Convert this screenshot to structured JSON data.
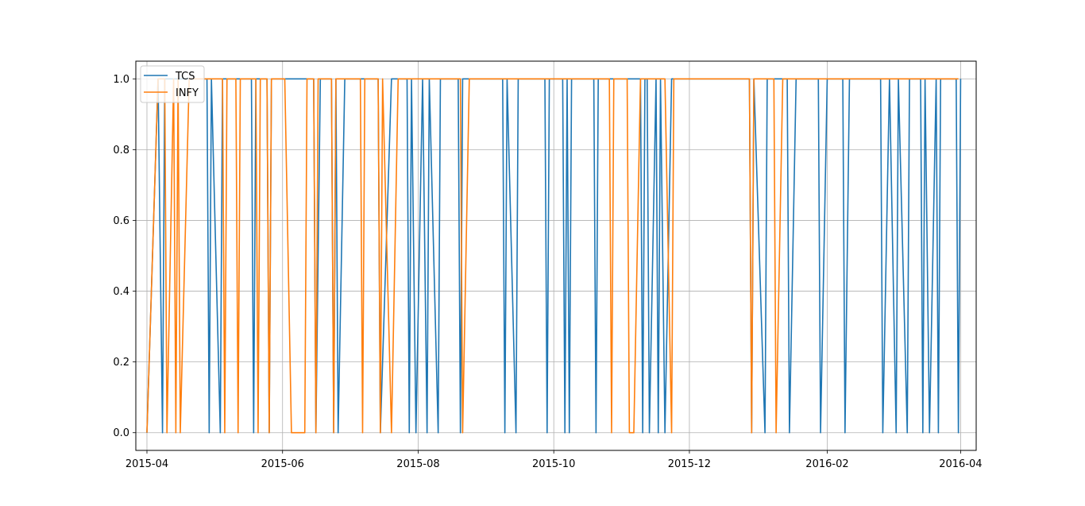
{
  "chart_data": {
    "type": "line",
    "title": "",
    "xlabel": "",
    "ylabel": "",
    "x_axis": "date",
    "xlim": [
      "2015-03-27",
      "2016-04-08"
    ],
    "ylim": [
      -0.05,
      1.05
    ],
    "grid": true,
    "legend_position": "top-left",
    "x_ticks": [
      "2015-04",
      "2015-06",
      "2015-08",
      "2015-10",
      "2015-12",
      "2016-02",
      "2016-04"
    ],
    "y_ticks": [
      "0.0",
      "0.2",
      "0.4",
      "0.6",
      "0.8",
      "1.0"
    ],
    "series": [
      {
        "name": "TCS",
        "color": "#1f77b4",
        "points": [
          [
            "2015-04-01",
            0
          ],
          [
            "2015-04-06",
            1
          ],
          [
            "2015-04-08",
            0
          ],
          [
            "2015-04-09",
            1
          ],
          [
            "2015-04-28",
            1
          ],
          [
            "2015-04-29",
            0
          ],
          [
            "2015-04-30",
            1
          ],
          [
            "2015-05-04",
            0
          ],
          [
            "2015-05-05",
            1
          ],
          [
            "2015-05-18",
            1
          ],
          [
            "2015-05-19",
            0
          ],
          [
            "2015-05-20",
            1
          ],
          [
            "2015-05-25",
            1
          ],
          [
            "2015-05-26",
            0
          ],
          [
            "2015-05-27",
            1
          ],
          [
            "2015-06-15",
            1
          ],
          [
            "2015-06-16",
            0
          ],
          [
            "2015-06-18",
            1
          ],
          [
            "2015-06-23",
            1
          ],
          [
            "2015-06-24",
            0
          ],
          [
            "2015-06-25",
            1
          ],
          [
            "2015-06-26",
            0
          ],
          [
            "2015-06-29",
            1
          ],
          [
            "2015-07-14",
            1
          ],
          [
            "2015-07-15",
            0
          ],
          [
            "2015-07-20",
            1
          ],
          [
            "2015-07-27",
            1
          ],
          [
            "2015-07-28",
            0
          ],
          [
            "2015-07-29",
            1
          ],
          [
            "2015-07-31",
            0
          ],
          [
            "2015-08-03",
            1
          ],
          [
            "2015-08-05",
            0
          ],
          [
            "2015-08-06",
            1
          ],
          [
            "2015-08-10",
            0
          ],
          [
            "2015-08-11",
            1
          ],
          [
            "2015-08-19",
            1
          ],
          [
            "2015-08-20",
            0
          ],
          [
            "2015-08-21",
            1
          ],
          [
            "2015-09-08",
            1
          ],
          [
            "2015-09-09",
            0
          ],
          [
            "2015-09-10",
            1
          ],
          [
            "2015-09-14",
            0
          ],
          [
            "2015-09-15",
            1
          ],
          [
            "2015-09-27",
            1
          ],
          [
            "2015-09-28",
            0
          ],
          [
            "2015-09-29",
            1
          ],
          [
            "2015-10-05",
            1
          ],
          [
            "2015-10-06",
            0
          ],
          [
            "2015-10-07",
            1
          ],
          [
            "2015-10-08",
            0
          ],
          [
            "2015-10-09",
            1
          ],
          [
            "2015-10-19",
            1
          ],
          [
            "2015-10-20",
            0
          ],
          [
            "2015-10-21",
            1
          ],
          [
            "2015-11-09",
            1
          ],
          [
            "2015-11-10",
            0
          ],
          [
            "2015-11-11",
            1
          ],
          [
            "2015-11-12",
            1
          ],
          [
            "2015-11-13",
            0
          ],
          [
            "2015-11-16",
            1
          ],
          [
            "2015-11-17",
            0
          ],
          [
            "2015-11-18",
            1
          ],
          [
            "2015-11-20",
            0
          ],
          [
            "2015-11-23",
            1
          ],
          [
            "2015-12-28",
            1
          ],
          [
            "2015-12-29",
            0
          ],
          [
            "2015-12-30",
            1
          ],
          [
            "2016-01-04",
            0
          ],
          [
            "2016-01-05",
            1
          ],
          [
            "2016-01-14",
            1
          ],
          [
            "2016-01-15",
            0
          ],
          [
            "2016-01-18",
            1
          ],
          [
            "2016-01-28",
            1
          ],
          [
            "2016-01-29",
            0
          ],
          [
            "2016-02-01",
            1
          ],
          [
            "2016-02-08",
            1
          ],
          [
            "2016-02-09",
            0
          ],
          [
            "2016-02-11",
            1
          ],
          [
            "2016-02-25",
            1
          ],
          [
            "2016-02-26",
            0
          ],
          [
            "2016-02-29",
            1
          ],
          [
            "2016-03-03",
            0
          ],
          [
            "2016-03-04",
            1
          ],
          [
            "2016-03-08",
            0
          ],
          [
            "2016-03-09",
            1
          ],
          [
            "2016-03-14",
            1
          ],
          [
            "2016-03-15",
            0
          ],
          [
            "2016-03-16",
            1
          ],
          [
            "2016-03-18",
            0
          ],
          [
            "2016-03-21",
            1
          ],
          [
            "2016-03-22",
            0
          ],
          [
            "2016-03-23",
            1
          ],
          [
            "2016-03-30",
            1
          ],
          [
            "2016-03-31",
            0
          ],
          [
            "2016-04-01",
            1
          ]
        ]
      },
      {
        "name": "INFY",
        "color": "#ff7f0e",
        "points": [
          [
            "2015-04-01",
            0
          ],
          [
            "2015-04-06",
            1
          ],
          [
            "2015-04-09",
            1
          ],
          [
            "2015-04-10",
            0
          ],
          [
            "2015-04-13",
            1
          ],
          [
            "2015-04-14",
            0
          ],
          [
            "2015-04-15",
            1
          ],
          [
            "2015-04-16",
            0
          ],
          [
            "2015-04-20",
            1
          ],
          [
            "2015-05-05",
            1
          ],
          [
            "2015-05-06",
            0
          ],
          [
            "2015-05-07",
            1
          ],
          [
            "2015-05-11",
            1
          ],
          [
            "2015-05-12",
            0
          ],
          [
            "2015-05-13",
            1
          ],
          [
            "2015-05-20",
            1
          ],
          [
            "2015-05-21",
            0
          ],
          [
            "2015-05-22",
            1
          ],
          [
            "2015-05-25",
            1
          ],
          [
            "2015-05-26",
            0
          ],
          [
            "2015-05-27",
            1
          ],
          [
            "2015-06-02",
            1
          ],
          [
            "2015-06-05",
            0
          ],
          [
            "2015-06-11",
            0
          ],
          [
            "2015-06-12",
            1
          ],
          [
            "2015-06-15",
            1
          ],
          [
            "2015-06-16",
            0
          ],
          [
            "2015-06-17",
            1
          ],
          [
            "2015-06-23",
            1
          ],
          [
            "2015-06-24",
            0
          ],
          [
            "2015-06-25",
            1
          ],
          [
            "2015-07-06",
            1
          ],
          [
            "2015-07-07",
            0
          ],
          [
            "2015-07-08",
            1
          ],
          [
            "2015-07-14",
            1
          ],
          [
            "2015-07-15",
            0
          ],
          [
            "2015-07-16",
            1
          ],
          [
            "2015-07-20",
            0
          ],
          [
            "2015-07-23",
            1
          ],
          [
            "2015-08-20",
            1
          ],
          [
            "2015-08-21",
            0
          ],
          [
            "2015-08-24",
            1
          ],
          [
            "2015-10-26",
            1
          ],
          [
            "2015-10-27",
            0
          ],
          [
            "2015-10-28",
            1
          ],
          [
            "2015-11-03",
            1
          ],
          [
            "2015-11-04",
            0
          ],
          [
            "2015-11-06",
            0
          ],
          [
            "2015-11-09",
            1
          ],
          [
            "2015-11-20",
            1
          ],
          [
            "2015-11-23",
            0
          ],
          [
            "2015-11-24",
            1
          ],
          [
            "2015-12-28",
            1
          ],
          [
            "2015-12-29",
            0
          ],
          [
            "2015-12-30",
            1
          ],
          [
            "2016-01-08",
            1
          ],
          [
            "2016-01-09",
            0
          ],
          [
            "2016-01-12",
            1
          ],
          [
            "2016-03-31",
            1
          ]
        ]
      }
    ]
  }
}
